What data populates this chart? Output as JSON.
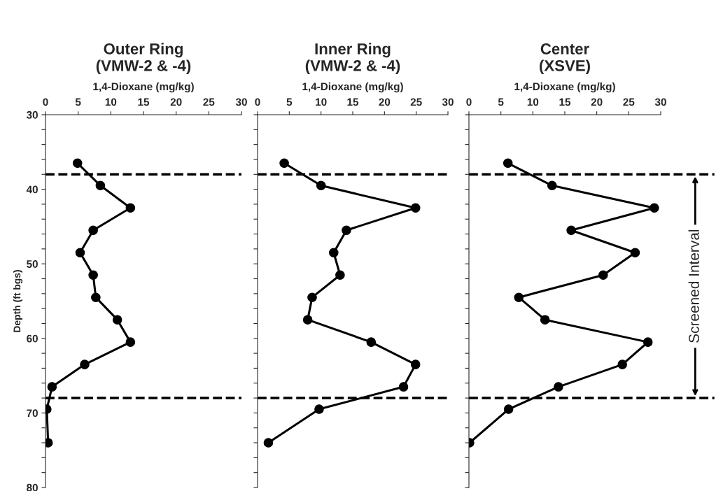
{
  "chart_data": [
    {
      "type": "line",
      "title": "Outer Ring\n(VMW-2 & -4)",
      "xlabel": "1,4-Dioxane (mg/kg)",
      "ylabel": "Depth (ft bgs)",
      "series": [
        {
          "color": "#000000",
          "x": [
            4.9,
            8.4,
            13.0,
            7.3,
            5.3,
            7.3,
            7.7,
            11.0,
            13.0,
            6.0,
            1.0,
            0.2,
            0.4
          ],
          "values": [
            36.5,
            39.5,
            42.5,
            45.5,
            48.5,
            51.5,
            54.5,
            57.5,
            60.5,
            63.5,
            66.5,
            69.5,
            74.0
          ]
        }
      ],
      "xlim": [
        0,
        30
      ],
      "xticks": [
        0,
        5,
        10,
        15,
        20,
        25,
        30
      ],
      "ylim": [
        80,
        30
      ],
      "yticks": [
        30,
        {
          "value": 32,
          "label": null
        },
        {
          "value": 34,
          "label": null
        },
        {
          "value": 36,
          "label": null
        },
        {
          "value": 38,
          "label": null
        },
        40,
        {
          "value": 42,
          "label": null
        },
        {
          "value": 44,
          "label": null
        },
        {
          "value": 46,
          "label": null
        },
        {
          "value": 48,
          "label": null
        },
        50,
        {
          "value": 52,
          "label": null
        },
        {
          "value": 54,
          "label": null
        },
        {
          "value": 56,
          "label": null
        },
        {
          "value": 58,
          "label": null
        },
        60,
        {
          "value": 62,
          "label": null
        },
        {
          "value": 64,
          "label": null
        },
        {
          "value": 66,
          "label": null
        },
        {
          "value": 68,
          "label": null
        },
        70,
        {
          "value": 72,
          "label": null
        },
        {
          "value": 74,
          "label": null
        },
        {
          "value": 76,
          "label": null
        },
        {
          "value": 78,
          "label": null
        },
        80
      ],
      "marker": "circle",
      "line_style": "solid",
      "grid": false,
      "legend": false,
      "ref_lines": [
        {
          "axis": "y",
          "value": 38,
          "line_style": "dashed",
          "color": "#000000"
        },
        {
          "axis": "y",
          "value": 68,
          "line_style": "dashed",
          "color": "#000000"
        }
      ]
    },
    {
      "type": "line",
      "title": "Inner Ring\n(VMW-2 & -4)",
      "xlabel": "1,4-Dioxane (mg/kg)",
      "series": [
        {
          "color": "#000000",
          "x": [
            4.2,
            10.0,
            24.9,
            14.0,
            12.0,
            13.0,
            8.6,
            7.9,
            17.9,
            24.9,
            23.0,
            9.7,
            1.7
          ],
          "values": [
            36.5,
            39.5,
            42.5,
            45.5,
            48.5,
            51.5,
            54.5,
            57.5,
            60.5,
            63.5,
            66.5,
            69.5,
            74.0
          ]
        }
      ],
      "xlim": [
        0,
        30
      ],
      "xticks": [
        0,
        5,
        10,
        15,
        20,
        25,
        30
      ],
      "ylim": [
        80,
        30
      ],
      "yticks": [
        30,
        32,
        34,
        36,
        38,
        40,
        42,
        44,
        46,
        48,
        50,
        52,
        54,
        56,
        58,
        60,
        62,
        64,
        66,
        68,
        70,
        72,
        74,
        76,
        78,
        80
      ],
      "tick_labels": "x",
      "marker": "circle",
      "line_style": "solid",
      "grid": false,
      "legend": false,
      "ref_lines": [
        {
          "axis": "y",
          "value": 38,
          "line_style": "dashed",
          "color": "#000000"
        },
        {
          "axis": "y",
          "value": 68,
          "line_style": "dashed",
          "color": "#000000"
        }
      ]
    },
    {
      "type": "line",
      "title": "Center\n(XSVE)",
      "xlabel": "1,4-Dioxane (mg/kg)",
      "series": [
        {
          "color": "#000000",
          "x": [
            6.1,
            13.0,
            29.0,
            16.0,
            26.0,
            21.0,
            7.8,
            11.9,
            28.0,
            24.0,
            14.0,
            6.2,
            0.1
          ],
          "values": [
            36.5,
            39.5,
            42.5,
            45.5,
            48.5,
            51.5,
            54.5,
            57.5,
            60.5,
            63.5,
            66.5,
            69.5,
            74.0
          ]
        }
      ],
      "xlim": [
        0,
        30
      ],
      "xticks": [
        0,
        5,
        10,
        15,
        20,
        25,
        30
      ],
      "ylim": [
        80,
        30
      ],
      "yticks": [
        30,
        32,
        34,
        36,
        38,
        40,
        42,
        44,
        46,
        48,
        50,
        52,
        54,
        56,
        58,
        60,
        62,
        64,
        66,
        68,
        70,
        72,
        74,
        76,
        78,
        80
      ],
      "tick_labels": "x",
      "marker": "circle",
      "line_style": "solid",
      "grid": false,
      "legend": false,
      "ref_lines": [
        {
          "axis": "y",
          "value": 38,
          "line_style": "dashed",
          "color": "#000000"
        },
        {
          "axis": "y",
          "value": 68,
          "line_style": "dashed",
          "color": "#000000"
        }
      ],
      "annotations": [
        "Screened Interval"
      ]
    }
  ]
}
